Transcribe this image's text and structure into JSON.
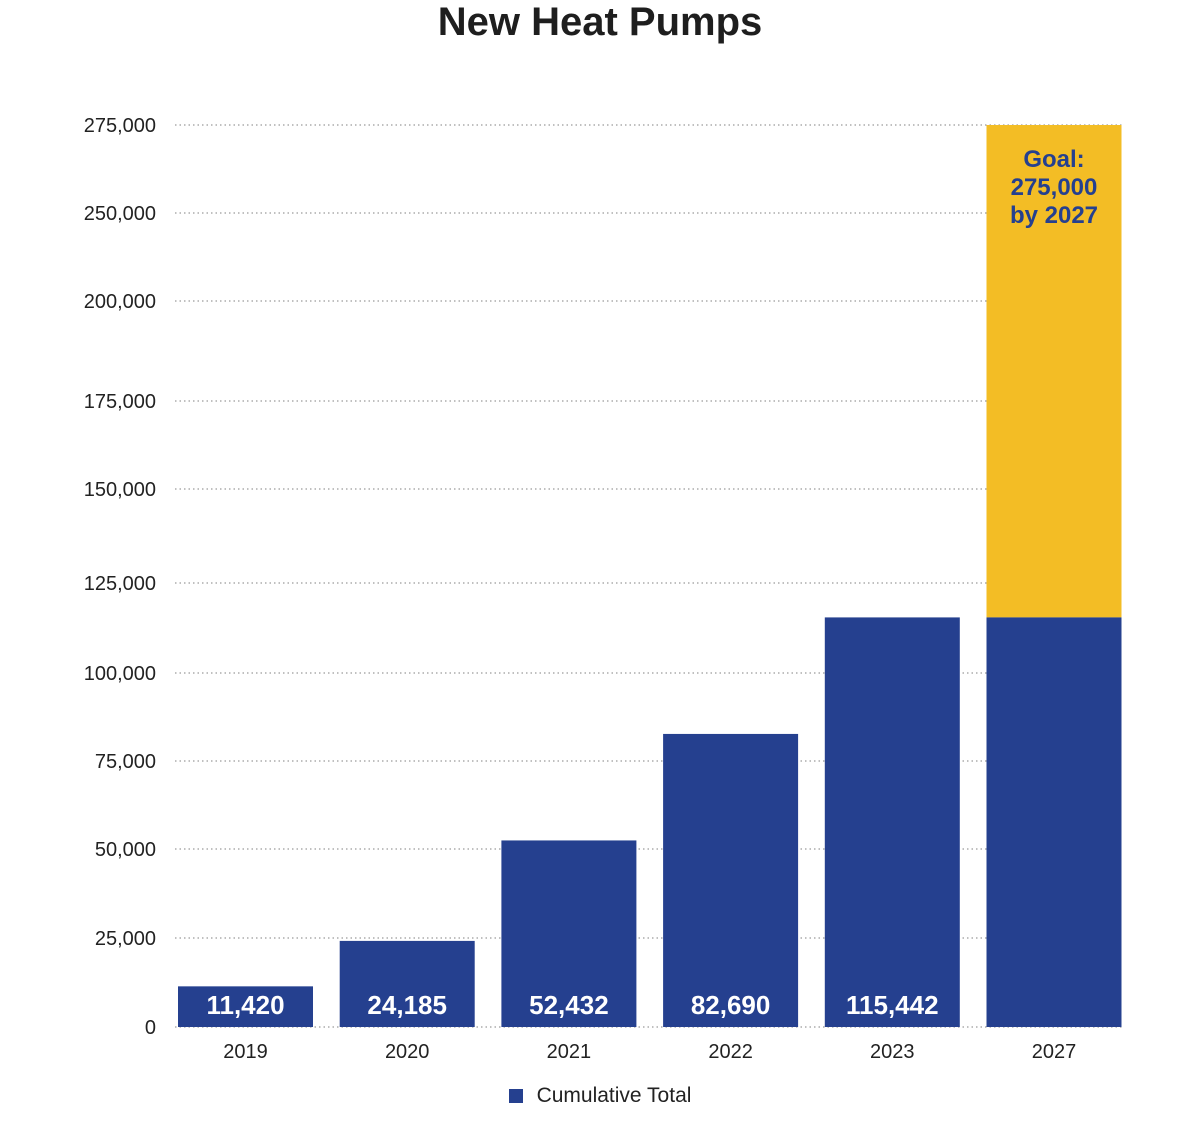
{
  "chart_data": {
    "type": "bar",
    "title": "New Heat Pumps",
    "xlabel": "",
    "ylabel": "",
    "ylim": [
      0,
      275000
    ],
    "y_ticks": [
      0,
      25000,
      50000,
      75000,
      100000,
      125000,
      150000,
      175000,
      200000,
      250000,
      275000
    ],
    "y_tick_labels": [
      "0",
      "25,000",
      "50,000",
      "75,000",
      "100,000",
      "125,000",
      "150,000",
      "175,000",
      "200,000",
      "250,000",
      "275,000"
    ],
    "grid": "horizontal dotted",
    "categories": [
      "2019",
      "2020",
      "2021",
      "2022",
      "2023",
      "2027"
    ],
    "series": [
      {
        "name": "Cumulative Total",
        "values": [
          11420,
          24185,
          52432,
          82690,
          115442,
          115442
        ],
        "data_labels": [
          "11,420",
          "24,185",
          "52,432",
          "82,690",
          "115,442",
          ""
        ]
      }
    ],
    "goal": {
      "category": "2027",
      "value": 275000,
      "label_lines": [
        "Goal:",
        "275,000",
        "by 2027"
      ]
    },
    "legend": {
      "position": "bottom-center",
      "entries": [
        "Cumulative Total"
      ]
    },
    "colors": {
      "bar": "#25408f",
      "goal": "#f3bd25",
      "goal_text": "#25408f",
      "highlight_category_text": "#25408f",
      "grid": "#9a9a9a"
    }
  }
}
